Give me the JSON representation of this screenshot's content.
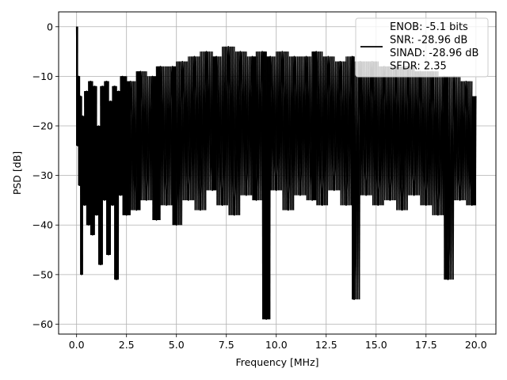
{
  "chart_data": {
    "type": "line",
    "title": "",
    "xlabel": "Frequency [MHz]",
    "ylabel": "PSD [dB]",
    "xlim": [
      -0.9,
      21.0
    ],
    "ylim": [
      -62.0,
      3.0
    ],
    "grid": true,
    "legend_position": "top-right",
    "xticks": [
      {
        "value": 0.0,
        "label": "0.0"
      },
      {
        "value": 2.5,
        "label": "2.5"
      },
      {
        "value": 5.0,
        "label": "5.0"
      },
      {
        "value": 7.5,
        "label": "7.5"
      },
      {
        "value": 10.0,
        "label": "10.0"
      },
      {
        "value": 12.5,
        "label": "12.5"
      },
      {
        "value": 15.0,
        "label": "15.0"
      },
      {
        "value": 17.5,
        "label": "17.5"
      },
      {
        "value": 20.0,
        "label": "20.0"
      }
    ],
    "yticks": [
      {
        "value": 0,
        "label": "0"
      },
      {
        "value": -10,
        "label": "−10"
      },
      {
        "value": -20,
        "label": "−20"
      },
      {
        "value": -30,
        "label": "−30"
      },
      {
        "value": -40,
        "label": "−40"
      },
      {
        "value": -50,
        "label": "−50"
      },
      {
        "value": -60,
        "label": "−60"
      }
    ],
    "series": [
      {
        "name": "",
        "color": "#000000",
        "x": [
          0.0,
          0.05,
          0.1,
          0.15,
          0.2,
          0.25,
          0.3,
          0.4,
          0.5,
          0.6,
          0.7,
          0.8,
          0.9,
          1.0,
          1.1,
          1.2,
          1.3,
          1.4,
          1.5,
          1.6,
          1.7,
          1.8,
          1.9,
          2.0,
          2.1,
          2.2,
          2.3,
          2.5,
          2.7,
          3.0,
          3.2,
          3.5,
          3.8,
          4.0,
          4.2,
          4.5,
          4.8,
          5.0,
          5.3,
          5.6,
          5.9,
          6.2,
          6.5,
          6.8,
          7.0,
          7.3,
          7.6,
          7.9,
          8.2,
          8.5,
          8.8,
          9.0,
          9.3,
          9.5,
          9.7,
          10.0,
          10.3,
          10.6,
          10.9,
          11.2,
          11.5,
          11.8,
          12.0,
          12.3,
          12.6,
          12.9,
          13.2,
          13.5,
          13.8,
          13.9,
          14.2,
          14.5,
          14.8,
          15.1,
          15.4,
          15.7,
          16.0,
          16.3,
          16.6,
          16.9,
          17.2,
          17.5,
          17.8,
          18.1,
          18.4,
          18.6,
          18.9,
          19.2,
          19.5,
          19.8,
          20.0
        ],
        "values": [
          0,
          -24,
          -10,
          -32,
          -14,
          -50,
          -18,
          -36,
          -13,
          -40,
          -11,
          -42,
          -12,
          -38,
          -20,
          -48,
          -12,
          -35,
          -11,
          -46,
          -15,
          -36,
          -12,
          -51,
          -13,
          -34,
          -10,
          -38,
          -11,
          -37,
          -9,
          -35,
          -10,
          -39,
          -8,
          -36,
          -8,
          -40,
          -7,
          -35,
          -6,
          -37,
          -5,
          -33,
          -6,
          -36,
          -4,
          -38,
          -5,
          -34,
          -6,
          -35,
          -5,
          -59,
          -6,
          -33,
          -5,
          -37,
          -6,
          -34,
          -6,
          -35,
          -5,
          -36,
          -6,
          -33,
          -7,
          -36,
          -6,
          -55,
          -7,
          -34,
          -7,
          -36,
          -8,
          -35,
          -8,
          -37,
          -8,
          -34,
          -9,
          -36,
          -9,
          -38,
          -10,
          -51,
          -10,
          -35,
          -11,
          -36,
          -14
        ]
      }
    ],
    "legend": {
      "lines": [
        "ENOB: -5.1 bits",
        "SNR: -28.96 dB",
        "SINAD: -28.96 dB",
        "SFDR: 2.35"
      ]
    }
  }
}
